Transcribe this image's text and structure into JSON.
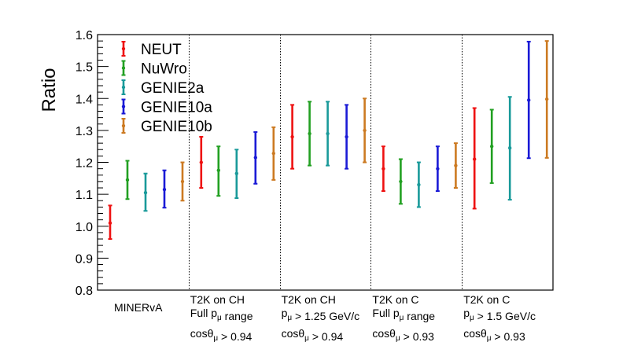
{
  "chart_data": {
    "type": "errorbar",
    "title": "",
    "xlabel": "",
    "ylabel": "Ratio",
    "ylim": [
      0.8,
      1.6
    ],
    "yticks": [
      "0.8",
      "0.9",
      "1.0",
      "1.1",
      "1.2",
      "1.3",
      "1.4",
      "1.5",
      "1.6"
    ],
    "grid": false,
    "legend_position": "top-left",
    "categories": [
      {
        "lines": [
          [
            "MINERvA"
          ]
        ]
      },
      {
        "lines": [
          [
            "T2K on CH"
          ],
          [
            "Full p",
            {
              "sub": "μ"
            },
            " range"
          ],
          [
            "cosθ",
            {
              "sub": "μ"
            },
            " > 0.94"
          ]
        ]
      },
      {
        "lines": [
          [
            "T2K on CH"
          ],
          [
            "p",
            {
              "sub": "μ"
            },
            " > 1.25 GeV/c"
          ],
          [
            "cosθ",
            {
              "sub": "μ"
            },
            " > 0.94"
          ]
        ]
      },
      {
        "lines": [
          [
            "T2K on C"
          ],
          [
            "Full p",
            {
              "sub": "μ"
            },
            " range"
          ],
          [
            "cosθ",
            {
              "sub": "μ"
            },
            " > 0.93"
          ]
        ]
      },
      {
        "lines": [
          [
            "T2K on C"
          ],
          [
            "p",
            {
              "sub": "μ"
            },
            " > 1.5 GeV/c"
          ],
          [
            "cosθ",
            {
              "sub": "μ"
            },
            " > 0.93"
          ]
        ]
      }
    ],
    "series": [
      {
        "name": "NEUT",
        "color": "#ee1111",
        "values": [
          1.01,
          1.2,
          1.28,
          1.18,
          1.21
        ],
        "errors": [
          [
            0.96,
            1.065
          ],
          [
            1.12,
            1.28
          ],
          [
            1.18,
            1.38
          ],
          [
            1.11,
            1.25
          ],
          [
            1.055,
            1.37
          ]
        ]
      },
      {
        "name": "NuWro",
        "color": "#22a022",
        "values": [
          1.145,
          1.175,
          1.29,
          1.14,
          1.25
        ],
        "errors": [
          [
            1.085,
            1.205
          ],
          [
            1.095,
            1.25
          ],
          [
            1.19,
            1.39
          ],
          [
            1.07,
            1.21
          ],
          [
            1.135,
            1.365
          ]
        ]
      },
      {
        "name": "GENIE2a",
        "color": "#199a9a",
        "values": [
          1.105,
          1.165,
          1.29,
          1.13,
          1.245
        ],
        "errors": [
          [
            1.048,
            1.165
          ],
          [
            1.088,
            1.24
          ],
          [
            1.19,
            1.39
          ],
          [
            1.06,
            1.2
          ],
          [
            1.083,
            1.405
          ]
        ]
      },
      {
        "name": "GENIE10a",
        "color": "#1a1ad6",
        "values": [
          1.115,
          1.215,
          1.28,
          1.18,
          1.395
        ],
        "errors": [
          [
            1.058,
            1.175
          ],
          [
            1.133,
            1.295
          ],
          [
            1.18,
            1.38
          ],
          [
            1.11,
            1.25
          ],
          [
            1.213,
            1.578
          ]
        ]
      },
      {
        "name": "GENIE10b",
        "color": "#cc7a22",
        "values": [
          1.14,
          1.228,
          1.3,
          1.19,
          1.398
        ],
        "errors": [
          [
            1.08,
            1.2
          ],
          [
            1.145,
            1.31
          ],
          [
            1.2,
            1.4
          ],
          [
            1.12,
            1.26
          ],
          [
            1.214,
            1.58
          ]
        ]
      }
    ]
  }
}
